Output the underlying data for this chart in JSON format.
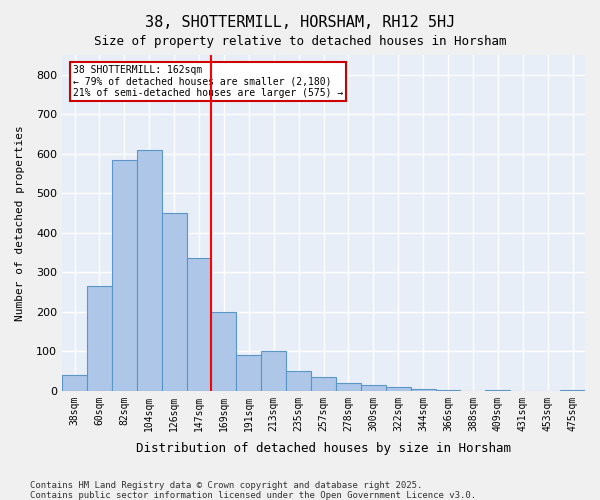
{
  "title1": "38, SHOTTERMILL, HORSHAM, RH12 5HJ",
  "title2": "Size of property relative to detached houses in Horsham",
  "xlabel": "Distribution of detached houses by size in Horsham",
  "ylabel": "Number of detached properties",
  "categories": [
    "38sqm",
    "60sqm",
    "82sqm",
    "104sqm",
    "126sqm",
    "147sqm",
    "169sqm",
    "191sqm",
    "213sqm",
    "235sqm",
    "257sqm",
    "278sqm",
    "300sqm",
    "322sqm",
    "344sqm",
    "366sqm",
    "388sqm",
    "409sqm",
    "431sqm",
    "453sqm",
    "475sqm"
  ],
  "values": [
    40,
    265,
    585,
    610,
    450,
    335,
    200,
    90,
    100,
    50,
    35,
    20,
    15,
    10,
    5,
    2,
    0,
    2,
    0,
    0,
    2
  ],
  "bar_color": "#aec6e8",
  "bar_edge_color": "#5a96c8",
  "bg_color": "#e8eef8",
  "grid_color": "#ffffff",
  "redline_x": 5.5,
  "redline_label": "38 SHOTTERMILL: 162sqm",
  "annotation_line1": "38 SHOTTERMILL: 162sqm",
  "annotation_line2": "← 79% of detached houses are smaller (2,180)",
  "annotation_line3": "21% of semi-detached houses are larger (575) →",
  "annotation_box_color": "#cc0000",
  "ylim": [
    0,
    850
  ],
  "yticks": [
    0,
    100,
    200,
    300,
    400,
    500,
    600,
    700,
    800
  ],
  "footnote1": "Contains HM Land Registry data © Crown copyright and database right 2025.",
  "footnote2": "Contains public sector information licensed under the Open Government Licence v3.0."
}
